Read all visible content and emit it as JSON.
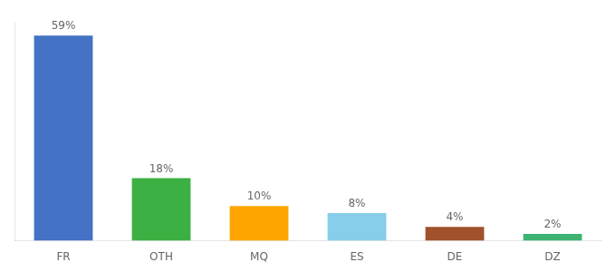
{
  "chart_data": {
    "type": "bar",
    "categories": [
      "FR",
      "OTH",
      "MQ",
      "ES",
      "DE",
      "DZ"
    ],
    "values": [
      59,
      18,
      10,
      8,
      4,
      2
    ],
    "value_labels": [
      "59%",
      "18%",
      "10%",
      "8%",
      "4%",
      "2%"
    ],
    "colors": [
      "#4472C4",
      "#3CB043",
      "#FFA500",
      "#87CEEB",
      "#A0522D",
      "#3CB371"
    ],
    "ylim": [
      0,
      63
    ],
    "tick_labels": "x",
    "grid": false,
    "data_labels": true
  }
}
